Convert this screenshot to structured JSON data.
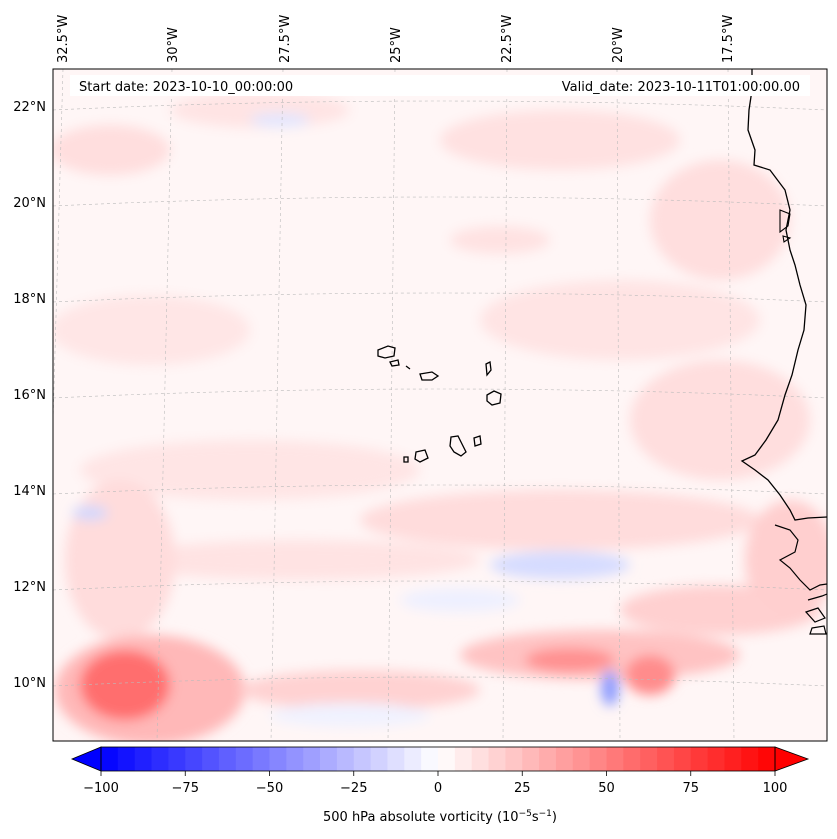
{
  "header": {
    "start_date": "Start date: 2023-10-10_00:00:00",
    "valid_date": "Valid_date: 2023-10-11T01:00:00.00"
  },
  "map": {
    "variable": "500 hPa absolute vorticity",
    "region": "Cape Verde / West African coast",
    "lon_labels": [
      "32.5°W",
      "30°W",
      "27.5°W",
      "25°W",
      "22.5°W",
      "20°W",
      "17.5°W"
    ],
    "lat_labels": [
      "22°N",
      "20°N",
      "18°N",
      "16°N",
      "14°N",
      "12°N",
      "10°N"
    ],
    "colors": {
      "negative_max": "#0000ff",
      "zero": "#ffffff",
      "positive_max": "#ff0000",
      "gridline": "#bbbbbb",
      "coastline": "#000000"
    }
  },
  "colorbar": {
    "label_prefix": "500 hPa absolute vorticity (10",
    "label_exp1": "−5",
    "label_mid": "s",
    "label_exp2": "−1",
    "label_suffix": ")",
    "ticks": [
      "−100",
      "−75",
      "−50",
      "−25",
      "0",
      "25",
      "50",
      "75",
      "100"
    ],
    "min": -100,
    "max": 100
  }
}
